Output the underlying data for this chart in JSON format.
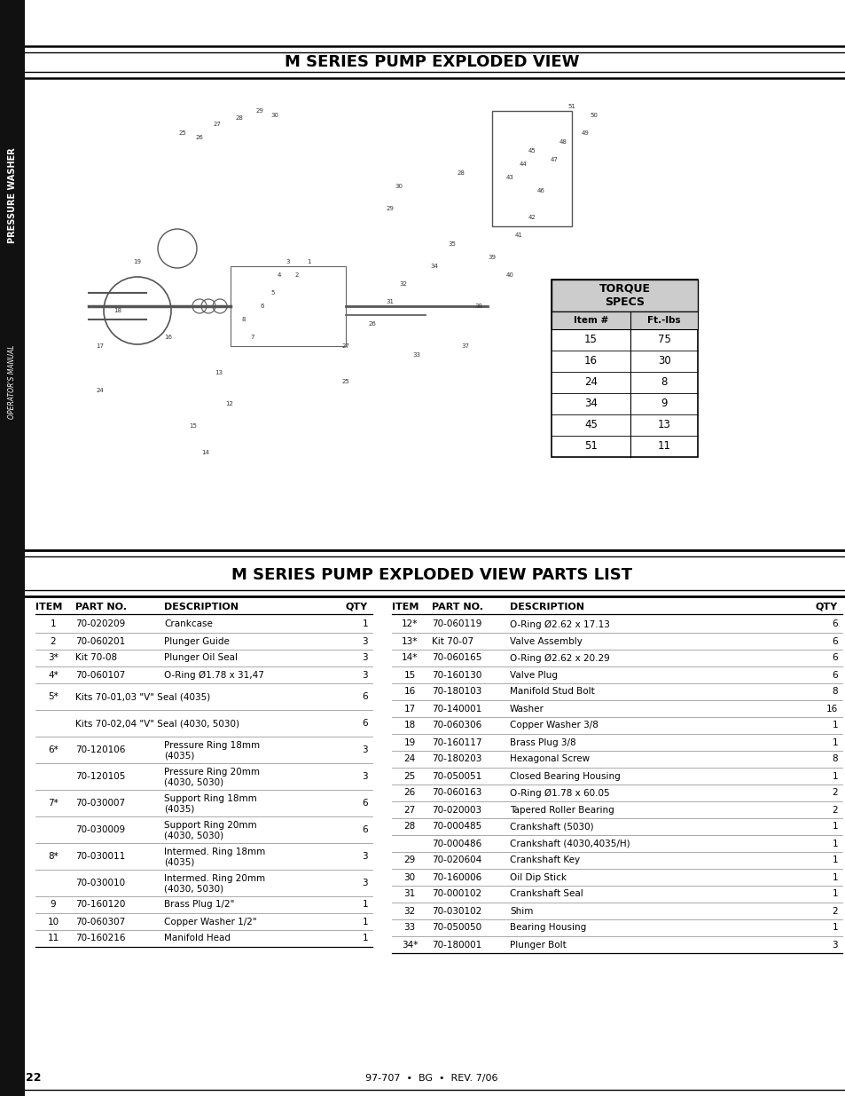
{
  "page_title1": "M SERIES PUMP EXPLODED VIEW",
  "page_title2": "M SERIES PUMP EXPLODED VIEW PARTS LIST",
  "sidebar_text": "PRESSURE WASHER",
  "sidebar_subtext": "OPERATOR'S MANUAL",
  "torque_title": "TORQUE\nSPECS",
  "torque_headers": [
    "Item #",
    "Ft.-lbs"
  ],
  "torque_data": [
    [
      15,
      75
    ],
    [
      16,
      30
    ],
    [
      24,
      8
    ],
    [
      34,
      9
    ],
    [
      45,
      13
    ],
    [
      51,
      11
    ]
  ],
  "parts_headers_left": [
    "ITEM",
    "PART NO.",
    "DESCRIPTION",
    "QTY"
  ],
  "parts_headers_right": [
    "ITEM",
    "PART NO.",
    "DESCRIPTION",
    "QTY"
  ],
  "parts_left": [
    {
      "item": "1",
      "part": "70-020209",
      "desc": "Crankcase",
      "desc2": "",
      "qty": "1",
      "span": false
    },
    {
      "item": "2",
      "part": "70-060201",
      "desc": "Plunger Guide",
      "desc2": "",
      "qty": "3",
      "span": false
    },
    {
      "item": "3*",
      "part": "Kit 70-08",
      "desc": "Plunger Oil Seal",
      "desc2": "",
      "qty": "3",
      "span": false
    },
    {
      "item": "4*",
      "part": "70-060107",
      "desc": "O-Ring Ø1.78 x 31,47",
      "desc2": "",
      "qty": "3",
      "span": false
    },
    {
      "item": "5*",
      "part": "Kits 70-01,03 \"V\" Seal (4035)",
      "desc": "",
      "desc2": "",
      "qty": "6",
      "span": true
    },
    {
      "item": "",
      "part": "Kits 70-02,04 \"V\" Seal (4030, 5030)",
      "desc": "",
      "desc2": "",
      "qty": "6",
      "span": true
    },
    {
      "item": "6*",
      "part": "70-120106",
      "desc": "Pressure Ring 18mm",
      "desc2": "(4035)",
      "qty": "3",
      "span": false
    },
    {
      "item": "",
      "part": "70-120105",
      "desc": "Pressure Ring 20mm",
      "desc2": "(4030, 5030)",
      "qty": "3",
      "span": false
    },
    {
      "item": "7*",
      "part": "70-030007",
      "desc": "Support Ring 18mm",
      "desc2": "(4035)",
      "qty": "6",
      "span": false
    },
    {
      "item": "",
      "part": "70-030009",
      "desc": "Support Ring 20mm",
      "desc2": "(4030, 5030)",
      "qty": "6",
      "span": false
    },
    {
      "item": "8*",
      "part": "70-030011",
      "desc": "Intermed. Ring 18mm",
      "desc2": "(4035)",
      "qty": "3",
      "span": false
    },
    {
      "item": "",
      "part": "70-030010",
      "desc": "Intermed. Ring 20mm",
      "desc2": "(4030, 5030)",
      "qty": "3",
      "span": false
    },
    {
      "item": "9",
      "part": "70-160120",
      "desc": "Brass Plug 1/2\"",
      "desc2": "",
      "qty": "1",
      "span": false
    },
    {
      "item": "10",
      "part": "70-060307",
      "desc": "Copper Washer 1/2\"",
      "desc2": "",
      "qty": "1",
      "span": false
    },
    {
      "item": "11",
      "part": "70-160216",
      "desc": "Manifold Head",
      "desc2": "",
      "qty": "1",
      "span": false
    }
  ],
  "parts_right": [
    {
      "item": "12*",
      "part": "70-060119",
      "desc": "O-Ring Ø2.62 x 17.13",
      "desc2": "",
      "qty": "6"
    },
    {
      "item": "13*",
      "part": "Kit 70-07",
      "desc": "Valve Assembly",
      "desc2": "",
      "qty": "6"
    },
    {
      "item": "14*",
      "part": "70-060165",
      "desc": "O-Ring Ø2.62 x 20.29",
      "desc2": "",
      "qty": "6"
    },
    {
      "item": "15",
      "part": "70-160130",
      "desc": "Valve Plug",
      "desc2": "",
      "qty": "6"
    },
    {
      "item": "16",
      "part": "70-180103",
      "desc": "Manifold Stud Bolt",
      "desc2": "",
      "qty": "8"
    },
    {
      "item": "17",
      "part": "70-140001",
      "desc": "Washer",
      "desc2": "",
      "qty": "16"
    },
    {
      "item": "18",
      "part": "70-060306",
      "desc": "Copper Washer 3/8",
      "desc2": "",
      "qty": "1"
    },
    {
      "item": "19",
      "part": "70-160117",
      "desc": "Brass Plug 3/8",
      "desc2": "",
      "qty": "1"
    },
    {
      "item": "24",
      "part": "70-180203",
      "desc": "Hexagonal Screw",
      "desc2": "",
      "qty": "8"
    },
    {
      "item": "25",
      "part": "70-050051",
      "desc": "Closed Bearing Housing",
      "desc2": "",
      "qty": "1"
    },
    {
      "item": "26",
      "part": "70-060163",
      "desc": "O-Ring Ø1.78 x 60.05",
      "desc2": "",
      "qty": "2"
    },
    {
      "item": "27",
      "part": "70-020003",
      "desc": "Tapered Roller Bearing",
      "desc2": "",
      "qty": "2"
    },
    {
      "item": "28",
      "part": "70-000485",
      "desc": "Crankshaft (5030)",
      "desc2": "",
      "qty": "1"
    },
    {
      "item": "",
      "part": "70-000486",
      "desc": "Crankshaft (4030,4035/H)",
      "desc2": "",
      "qty": "1"
    },
    {
      "item": "29",
      "part": "70-020604",
      "desc": "Crankshaft Key",
      "desc2": "",
      "qty": "1"
    },
    {
      "item": "30",
      "part": "70-160006",
      "desc": "Oil Dip Stick",
      "desc2": "",
      "qty": "1"
    },
    {
      "item": "31",
      "part": "70-000102",
      "desc": "Crankshaft Seal",
      "desc2": "",
      "qty": "1"
    },
    {
      "item": "32",
      "part": "70-030102",
      "desc": "Shim",
      "desc2": "",
      "qty": "2"
    },
    {
      "item": "33",
      "part": "70-050050",
      "desc": "Bearing Housing",
      "desc2": "",
      "qty": "1"
    },
    {
      "item": "34*",
      "part": "70-180001",
      "desc": "Plunger Bolt",
      "desc2": "",
      "qty": "3"
    }
  ],
  "footer": "97-707  •  BG  •  REV. 7/06",
  "page_number": "22",
  "bg_color": "#ffffff",
  "sidebar_bg": "#111111",
  "line_color": "#000000",
  "torque_header_bg": "#cccccc",
  "row_line_color": "#888888"
}
